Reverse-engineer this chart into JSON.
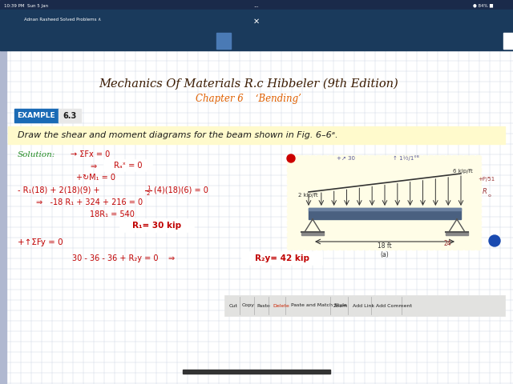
{
  "bg_color": "#f5f5f0",
  "grid_color": "#d0d0e0",
  "title_line1": "Mechanics Of Materials R.c Hibbeler (9th Edition)",
  "title_line2": "Chapter 6    ‘Bending’",
  "example_label": "EXAMPLE",
  "example_number": "6.3",
  "problem_text": "Draw the shear and moment diagrams for the beam shown in Fig. 6–6a.",
  "context_menu_items": [
    "Cut",
    "Copy",
    "Paste",
    "Delete",
    "Paste and Match Style",
    "Zoom",
    "Add Link",
    "Add Comment"
  ],
  "notebook_bg": "#ffffff",
  "toolbar_bg": "#1a3a5c",
  "status_bar_bg": "#1a2a4a",
  "yellow_box_bg": "#fffde7",
  "example_bg": "#1a6ab5",
  "highlight_bg": "#fffacc",
  "red_color": "#c00000",
  "green_color": "#228B22",
  "beam_color": "#4a6080",
  "beam_highlight": "#6a80a0"
}
